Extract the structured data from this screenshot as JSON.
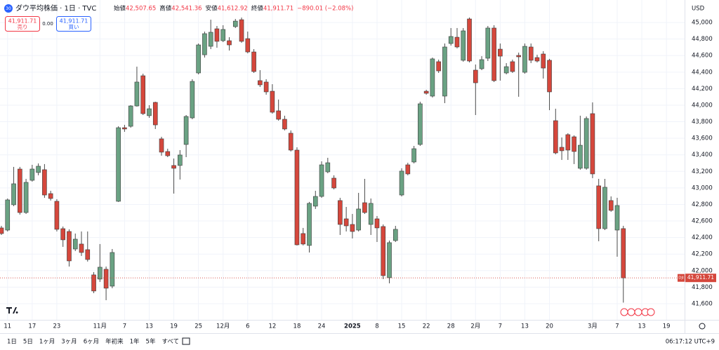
{
  "header": {
    "icon": "30",
    "symbol": "ダウ平均株価 · 1日 · TVC",
    "ohlc": [
      {
        "label": "始値",
        "value": "42,507.65"
      },
      {
        "label": "高値",
        "value": "42,541.36"
      },
      {
        "label": "安値",
        "value": "41,612.92"
      },
      {
        "label": "終値",
        "value": "41,911.71"
      }
    ],
    "change": "−890.01 (−2.08%)"
  },
  "trade": {
    "sell_price": "41,911.71",
    "sell_label": "売り",
    "spread": "0.00",
    "buy_price": "41,911.71",
    "buy_label": "買い"
  },
  "price_axis": {
    "currency": "USD",
    "symbol_tag": "DJI",
    "last_price": "41,911.71"
  },
  "toolbar": {
    "ranges": [
      "1日",
      "5日",
      "1ヶ月",
      "3ヶ月",
      "6ヶ月",
      "年初来",
      "1年",
      "5年",
      "すべて"
    ],
    "clock": "06:17:12 UTC+9"
  },
  "chart_data": {
    "type": "candlestick",
    "up_color": "#6aa283",
    "down_color": "#d5473c",
    "grid": true,
    "ylim": [
      41396,
      45272
    ],
    "yticks": [
      {
        "value": 41600,
        "label": "41,600"
      },
      {
        "value": 41800,
        "label": "41,800"
      },
      {
        "value": 42000,
        "label": "42,000"
      },
      {
        "value": 42200,
        "label": "42,200"
      },
      {
        "value": 42400,
        "label": "42,400"
      },
      {
        "value": 42600,
        "label": "42,600"
      },
      {
        "value": 42800,
        "label": "42,800"
      },
      {
        "value": 43000,
        "label": "43,000"
      },
      {
        "value": 43200,
        "label": "43,200"
      },
      {
        "value": 43400,
        "label": "43,400"
      },
      {
        "value": 43600,
        "label": "43,600"
      },
      {
        "value": 43800,
        "label": "43,800"
      },
      {
        "value": 44000,
        "label": "44,000"
      },
      {
        "value": 44200,
        "label": "44,200"
      },
      {
        "value": 44400,
        "label": "44,400"
      },
      {
        "value": 44600,
        "label": "44,600"
      },
      {
        "value": 44800,
        "label": "44,800"
      },
      {
        "value": 45000,
        "label": "45,000"
      }
    ],
    "categories": [
      null,
      "11",
      null,
      null,
      null,
      "17",
      null,
      null,
      null,
      "23",
      null,
      null,
      null,
      null,
      null,
      null,
      "11月",
      null,
      null,
      null,
      "7",
      null,
      null,
      null,
      "13",
      null,
      null,
      null,
      "19",
      null,
      null,
      null,
      "25",
      null,
      null,
      null,
      "12月",
      null,
      null,
      null,
      "6",
      null,
      null,
      null,
      "12",
      null,
      null,
      null,
      "18",
      null,
      null,
      null,
      "24",
      null,
      null,
      null,
      null,
      "2025",
      null,
      null,
      null,
      "8",
      null,
      null,
      null,
      "15",
      null,
      null,
      null,
      "22",
      null,
      null,
      null,
      "28",
      null,
      null,
      null,
      "2月",
      null,
      null,
      null,
      "7",
      null,
      null,
      null,
      "13",
      null,
      null,
      null,
      "20",
      null,
      null,
      null,
      null,
      null,
      null,
      "3月",
      null,
      null,
      null,
      "7",
      null,
      null,
      null,
      "13",
      null,
      null,
      null,
      "19",
      null
    ],
    "open": [
      42516,
      42490,
      42796,
      43228,
      42702,
      43092,
      43186,
      43220,
      42931,
      42838,
      42507,
      42473,
      42261,
      42321,
      42253,
      41948,
      41897,
      42016,
      41812,
      42838,
      43728,
      43745,
      43991,
      44356,
      43873,
      44034,
      43593,
      43440,
      43271,
      43271,
      43525,
      43847,
      44390,
      44610,
      44712,
      44924,
      44780,
      44780,
      44950,
      45034,
      44805,
      44644,
      44297,
      44280,
      44169,
      43932,
      43830,
      43661,
      43457,
      42448,
      42304,
      42779,
      42897,
      43194,
      43118,
      42847,
      42626,
      42558,
      42490,
      42821,
      42558,
      42626,
      42533,
      41914,
      42363,
      42914,
      43279,
      43313,
      43525,
      44169,
      44110,
      44526,
      44110,
      44746,
      44822,
      44543,
      45043,
      44424,
      44441,
      44568,
      44933,
      44678,
      44390,
      44526,
      44602,
      44398,
      44704,
      44576,
      44619,
      44543,
      43813,
      43491,
      43644,
      43618,
      43237,
      43237,
      43898,
      43025,
      42507,
      42847,
      42490,
      42507.65,
      null,
      null,
      null,
      null,
      null,
      null,
      null,
      null
    ],
    "high": [
      42541,
      42872,
      43254,
      43254,
      43109,
      43279,
      43296,
      43288,
      42965,
      42864,
      42533,
      42499,
      42448,
      42473,
      42473,
      41982,
      42321,
      42049,
      42261,
      43745,
      43762,
      44000,
      44466,
      44381,
      44000,
      44042,
      43618,
      43474,
      43355,
      43457,
      43881,
      44314,
      44746,
      44890,
      45034,
      44958,
      44967,
      44822,
      45043,
      45060,
      44890,
      44678,
      44424,
      44314,
      44254,
      44068,
      43873,
      43695,
      43491,
      42516,
      42830,
      42965,
      43321,
      43364,
      43152,
      42880,
      42770,
      42685,
      42940,
      43109,
      42872,
      42660,
      42558,
      42363,
      42541,
      43237,
      43304,
      43508,
      44042,
      44186,
      44576,
      44551,
      44746,
      44933,
      44933,
      44933,
      45060,
      44492,
      44593,
      44958,
      44967,
      44746,
      44509,
      44551,
      44636,
      44746,
      44746,
      44610,
      44653,
      44560,
      43957,
      43610,
      43661,
      43635,
      43873,
      43864,
      44034,
      43109,
      43109,
      42897,
      42880,
      42541.36,
      null,
      null,
      null,
      null,
      null,
      null,
      null,
      null
    ],
    "low": [
      42431,
      42473,
      42779,
      42677,
      42685,
      43076,
      43152,
      42880,
      42847,
      42473,
      42287,
      42049,
      42236,
      42177,
      42109,
      41727,
      41863,
      41642,
      41787,
      42830,
      43678,
      43728,
      43983,
      43881,
      43847,
      43712,
      43389,
      43372,
      42931,
      43101,
      43372,
      43830,
      44373,
      44576,
      44678,
      44695,
      44763,
      44661,
      44933,
      44755,
      44627,
      44390,
      44220,
      44127,
      43898,
      43813,
      43695,
      43440,
      42304,
      42304,
      42219,
      42745,
      42880,
      43177,
      42982,
      42431,
      42473,
      42389,
      42473,
      42685,
      42431,
      42346,
      41897,
      41846,
      42346,
      42897,
      43152,
      43296,
      43508,
      44127,
      44093,
      44390,
      44025,
      44721,
      44687,
      44526,
      44517,
      43881,
      44424,
      44534,
      44280,
      44297,
      44373,
      44390,
      44102,
      44381,
      44509,
      44517,
      44322,
      43940,
      43406,
      43338,
      43338,
      43288,
      43220,
      43220,
      43118,
      42355,
      42490,
      42711,
      42168,
      41612.92,
      null,
      null,
      null,
      null,
      null,
      null,
      null,
      null
    ],
    "close": [
      42448,
      42855,
      43050,
      42702,
      43067,
      43228,
      43262,
      42914,
      42872,
      42499,
      42372,
      42117,
      42380,
      42219,
      42134,
      41753,
      42041,
      41787,
      42219,
      43728,
      43712,
      43991,
      44280,
      43898,
      43957,
      43762,
      43432,
      43389,
      43237,
      43398,
      43864,
      44288,
      44729,
      44865,
      44882,
      44772,
      44916,
      44729,
      45017,
      44772,
      44644,
      44407,
      44246,
      44161,
      43915,
      43830,
      43712,
      43457,
      42312,
      42321,
      42813,
      42897,
      43279,
      43304,
      42999,
      42558,
      42541,
      42473,
      42745,
      42702,
      42813,
      42516,
      41939,
      42338,
      42499,
      43203,
      43169,
      43474,
      44017,
      44144,
      44560,
      44415,
      44704,
      44831,
      44704,
      44899,
      44534,
      44271,
      44551,
      44933,
      44297,
      44593,
      44466,
      44407,
      44585,
      44712,
      44543,
      44534,
      44449,
      44161,
      43423,
      43449,
      43457,
      43440,
      43516,
      43839,
      43169,
      42507,
      43008,
      42728,
      42787,
      41911.71,
      null,
      null,
      null,
      null,
      null,
      null,
      null,
      null
    ]
  }
}
